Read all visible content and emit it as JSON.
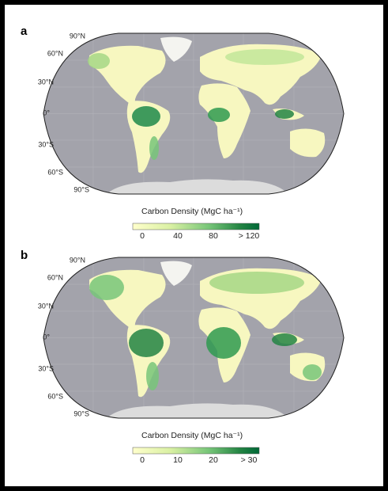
{
  "panels": [
    {
      "label": "a",
      "latitude_labels": [
        "90°N",
        "60°N",
        "30°N",
        "0°",
        "30°S",
        "60°S",
        "90°S"
      ],
      "colorbar": {
        "title": "Carbon Density  (MgC ha⁻¹)",
        "ticks": [
          "0",
          "40",
          "80",
          "> 120"
        ]
      }
    },
    {
      "label": "b",
      "latitude_labels": [
        "90°N",
        "60°N",
        "30°N",
        "0°",
        "30°S",
        "60°S",
        "90°S"
      ],
      "colorbar": {
        "title": "Carbon Density  (MgC ha⁻¹)",
        "ticks": [
          "0",
          "10",
          "20",
          "> 30"
        ]
      }
    }
  ]
}
